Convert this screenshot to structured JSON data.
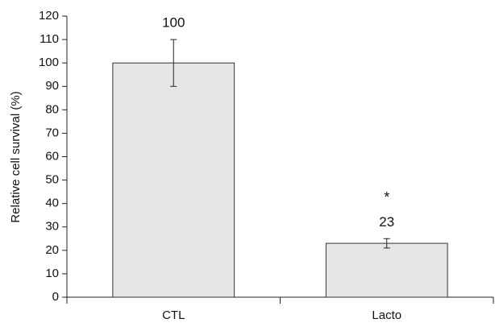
{
  "chart_data": {
    "type": "bar",
    "ylabel": "Relative cell survival (%)",
    "categories": [
      "CTL",
      "Lacto"
    ],
    "values": [
      100,
      23
    ],
    "errors": [
      10,
      2
    ],
    "annotation": "*",
    "color": "#e6e6e6",
    "ylim": [
      0,
      120
    ],
    "yticks": [
      0,
      10,
      20,
      30,
      40,
      50,
      60,
      70,
      80,
      90,
      100,
      110,
      120
    ],
    "grid": false
  }
}
